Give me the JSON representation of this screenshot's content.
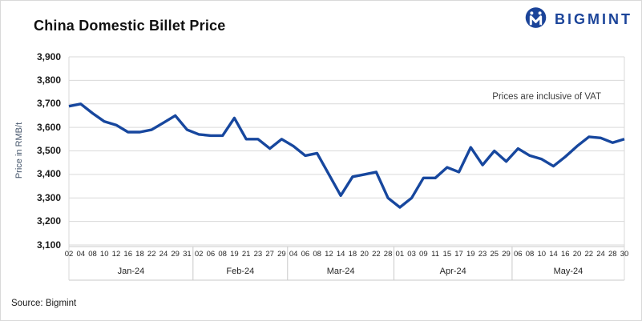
{
  "header": {
    "title": "China Domestic Billet Price"
  },
  "logo": {
    "text": "BIGMINT",
    "color": "#1b4499",
    "icon": "bigmint-miner-icon"
  },
  "annotation": "Prices are inclusive of VAT",
  "source": "Source: Bigmint",
  "chart_data": {
    "type": "line",
    "title": "China Domestic Billet Price",
    "xlabel": "",
    "ylabel": "Price in RMB/t",
    "ylim": [
      3100,
      3900
    ],
    "ytick_step": 100,
    "grid": true,
    "legend": "none",
    "line_color": "#17479e",
    "gridline_color": "#d9d9d9",
    "axis_line_color": "#c9c9c9",
    "series_name": "China domestic billet price (RMB/t, incl. VAT)",
    "months": [
      {
        "label": "Jan-24",
        "days": [
          "02",
          "04",
          "08",
          "10",
          "12",
          "16",
          "18",
          "22",
          "24",
          "29",
          "31"
        ],
        "values": [
          3690,
          3700,
          3660,
          3625,
          3610,
          3580,
          3580,
          3590,
          3620,
          3650,
          3590
        ]
      },
      {
        "label": "Feb-24",
        "days": [
          "02",
          "06",
          "08",
          "19",
          "21",
          "23",
          "27",
          "29"
        ],
        "values": [
          3570,
          3565,
          3565,
          3640,
          3550,
          3550,
          3510,
          3550
        ]
      },
      {
        "label": "Mar-24",
        "days": [
          "04",
          "06",
          "08",
          "12",
          "14",
          "18",
          "20",
          "22",
          "28"
        ],
        "values": [
          3520,
          3480,
          3490,
          3400,
          3310,
          3390,
          3400,
          3410,
          3300
        ]
      },
      {
        "label": "Apr-24",
        "days": [
          "01",
          "03",
          "09",
          "11",
          "15",
          "17",
          "19",
          "23",
          "25",
          "29"
        ],
        "values": [
          3260,
          3300,
          3385,
          3385,
          3430,
          3410,
          3515,
          3440,
          3500,
          3455
        ]
      },
      {
        "label": "May-24",
        "days": [
          "06",
          "08",
          "10",
          "14",
          "16",
          "20",
          "22",
          "24",
          "28",
          "30"
        ],
        "values": [
          3510,
          3480,
          3465,
          3435,
          3475,
          3520,
          3560,
          3555,
          3535,
          3550
        ]
      }
    ]
  }
}
